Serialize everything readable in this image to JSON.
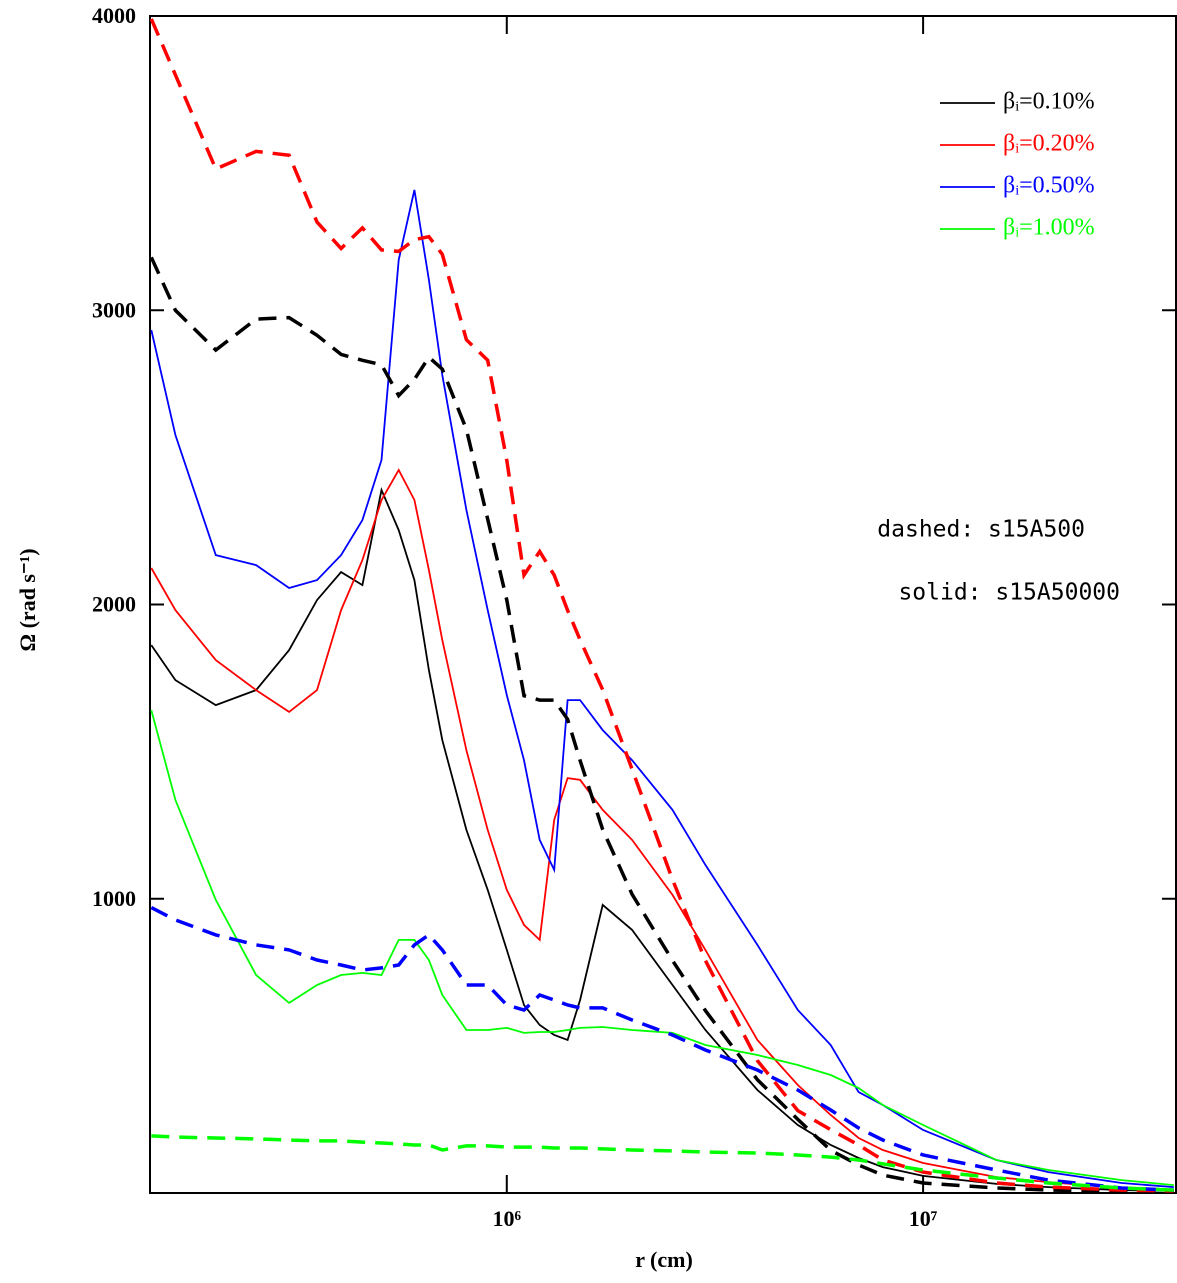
{
  "chart_data": {
    "type": "line",
    "xlabel": "r (cm)",
    "ylabel": "Ω (rad s⁻¹)",
    "xscale": "log",
    "xlim": [
      139000,
      40500000
    ],
    "ylim": [
      0,
      4000
    ],
    "xticks": [
      {
        "value": 1000000,
        "label": "10⁶"
      },
      {
        "value": 10000000,
        "label": "10⁷"
      }
    ],
    "yticks": [
      1000,
      2000,
      3000,
      4000
    ],
    "legend": "upper right",
    "annotations": [
      "dashed: s15A500",
      "solid: s15A50000"
    ],
    "x": [
      140000,
      160000,
      200000,
      250000,
      300000,
      350000,
      400000,
      450000,
      500000,
      550000,
      600000,
      650000,
      700000,
      800000,
      900000,
      1000000,
      1100000,
      1200000,
      1300000,
      1400000,
      1500000,
      1700000,
      2000000,
      2500000,
      3000000,
      4000000,
      5000000,
      6000000,
      7000000,
      8000000,
      10000000,
      15000000,
      20000000,
      30000000,
      40000000
    ],
    "series": [
      {
        "name": "βᵢ=0.10%",
        "color": "#000000",
        "dash": false,
        "values": [
          1862,
          1743,
          1658,
          1709,
          1845,
          2015,
          2110,
          2066,
          2389,
          2253,
          2083,
          1777,
          1539,
          1234,
          1030,
          826,
          639,
          571,
          537,
          520,
          656,
          979,
          894,
          707,
          554,
          350,
          231,
          163,
          119,
          88,
          58,
          31,
          20,
          10,
          7
        ]
      },
      {
        "name": "βᵢ=0.20%",
        "color": "#ff0000",
        "dash": false,
        "values": [
          2124,
          1981,
          1811,
          1709,
          1635,
          1709,
          1981,
          2151,
          2355,
          2457,
          2355,
          2117,
          1879,
          1505,
          1234,
          1030,
          911,
          860,
          1268,
          1410,
          1404,
          1302,
          1200,
          1013,
          826,
          520,
          367,
          265,
          187,
          146,
          102,
          54,
          37,
          17,
          10
        ]
      },
      {
        "name": "βᵢ=0.50%",
        "color": "#0000ff",
        "dash": false,
        "values": [
          2933,
          2576,
          2168,
          2134,
          2056,
          2083,
          2168,
          2287,
          2491,
          3171,
          3409,
          3103,
          2780,
          2321,
          1981,
          1692,
          1471,
          1200,
          1098,
          1675,
          1675,
          1573,
          1471,
          1302,
          1115,
          843,
          622,
          503,
          343,
          299,
          214,
          112,
          71,
          34,
          20
        ]
      },
      {
        "name": "βᵢ=1.00%",
        "color": "#00ff00",
        "dash": false,
        "values": [
          1641,
          1336,
          996,
          741,
          646,
          707,
          741,
          748,
          741,
          860,
          860,
          792,
          673,
          554,
          554,
          561,
          544,
          547,
          547,
          554,
          561,
          564,
          554,
          544,
          503,
          469,
          435,
          401,
          357,
          299,
          231,
          112,
          78,
          44,
          27
        ]
      },
      {
        "color": "#000000",
        "dash": true,
        "values": [
          3180,
          3000,
          2865,
          2970,
          2975,
          2915,
          2850,
          2830,
          2815,
          2710,
          2765,
          2840,
          2800,
          2595,
          2290,
          2015,
          1690,
          1675,
          1675,
          1610,
          1470,
          1235,
          1015,
          790,
          620,
          385,
          250,
          145,
          95,
          61,
          34,
          17,
          10,
          7,
          4
        ]
      },
      {
        "color": "#ff0000",
        "dash": true,
        "values": [
          3990,
          3800,
          3480,
          3540,
          3527,
          3300,
          3210,
          3280,
          3205,
          3200,
          3240,
          3250,
          3190,
          2900,
          2830,
          2490,
          2100,
          2180,
          2100,
          1980,
          1880,
          1710,
          1440,
          1065,
          790,
          450,
          280,
          215,
          163,
          112,
          71,
          34,
          20,
          10,
          7
        ]
      },
      {
        "color": "#0000ff",
        "dash": true,
        "values": [
          970,
          928,
          877,
          843,
          826,
          792,
          775,
          758,
          765,
          775,
          843,
          877,
          826,
          707,
          707,
          639,
          622,
          673,
          656,
          639,
          629,
          629,
          588,
          537,
          486,
          418,
          350,
          282,
          221,
          180,
          129,
          78,
          44,
          17,
          10
        ]
      },
      {
        "color": "#00ff00",
        "dash": true,
        "values": [
          194,
          190,
          187,
          184,
          180,
          177,
          177,
          173,
          170,
          167,
          163,
          163,
          146,
          160,
          160,
          156,
          156,
          156,
          153,
          153,
          153,
          150,
          146,
          143,
          139,
          136,
          129,
          122,
          112,
          99,
          78,
          51,
          34,
          17,
          10
        ]
      }
    ]
  }
}
